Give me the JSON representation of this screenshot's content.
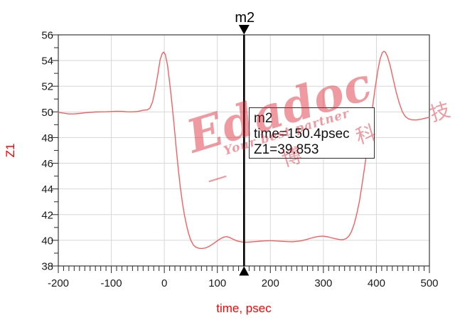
{
  "chart_data": {
    "type": "line",
    "title": "",
    "xlabel": "time, psec",
    "ylabel": "Z1",
    "xlim": [
      -200,
      500
    ],
    "ylim": [
      38,
      56
    ],
    "x_tick_step": 100,
    "x_minor_step": 10,
    "y_tick_step": 2,
    "y_minor_step": 1,
    "grid": true,
    "legend_position": "none",
    "colors": {
      "trace": "#f75f5f",
      "grid": "#d8d8d8",
      "frame": "#3a3a3a",
      "axis_title": "#fe0000",
      "marker": "#000000"
    },
    "series": [
      {
        "name": "Z1",
        "points": [
          [
            -200,
            49.97
          ],
          [
            -190,
            49.9
          ],
          [
            -180,
            49.84
          ],
          [
            -170,
            49.84
          ],
          [
            -160,
            49.88
          ],
          [
            -150,
            49.93
          ],
          [
            -140,
            49.96
          ],
          [
            -130,
            49.99
          ],
          [
            -120,
            50.0
          ],
          [
            -110,
            50.01
          ],
          [
            -100,
            50.03
          ],
          [
            -90,
            50.05
          ],
          [
            -80,
            50.04
          ],
          [
            -70,
            50.01
          ],
          [
            -60,
            50.0
          ],
          [
            -52,
            50.03
          ],
          [
            -45,
            50.08
          ],
          [
            -38,
            50.14
          ],
          [
            -32,
            50.16
          ],
          [
            -27,
            50.3
          ],
          [
            -22,
            50.8
          ],
          [
            -17,
            51.8
          ],
          [
            -12,
            53.0
          ],
          [
            -8,
            54.05
          ],
          [
            -4,
            54.55
          ],
          [
            -1,
            54.66
          ],
          [
            2,
            54.45
          ],
          [
            6,
            53.65
          ],
          [
            10,
            52.3
          ],
          [
            14,
            50.8
          ],
          [
            18,
            49.15
          ],
          [
            22,
            47.4
          ],
          [
            26,
            45.7
          ],
          [
            30,
            44.2
          ],
          [
            34,
            42.95
          ],
          [
            38,
            41.95
          ],
          [
            42,
            41.15
          ],
          [
            46,
            40.5
          ],
          [
            50,
            40.0
          ],
          [
            55,
            39.62
          ],
          [
            60,
            39.45
          ],
          [
            66,
            39.37
          ],
          [
            72,
            39.36
          ],
          [
            78,
            39.41
          ],
          [
            84,
            39.52
          ],
          [
            90,
            39.67
          ],
          [
            96,
            39.84
          ],
          [
            102,
            40.02
          ],
          [
            108,
            40.17
          ],
          [
            113,
            40.26
          ],
          [
            118,
            40.28
          ],
          [
            123,
            40.22
          ],
          [
            128,
            40.12
          ],
          [
            134,
            40.0
          ],
          [
            140,
            39.92
          ],
          [
            146,
            39.87
          ],
          [
            150.4,
            39.853
          ],
          [
            156,
            39.85
          ],
          [
            163,
            39.87
          ],
          [
            172,
            39.9
          ],
          [
            182,
            39.94
          ],
          [
            192,
            39.96
          ],
          [
            202,
            39.97
          ],
          [
            212,
            39.95
          ],
          [
            222,
            39.92
          ],
          [
            232,
            39.9
          ],
          [
            242,
            39.89
          ],
          [
            252,
            39.93
          ],
          [
            260,
            39.98
          ],
          [
            268,
            40.06
          ],
          [
            276,
            40.16
          ],
          [
            284,
            40.25
          ],
          [
            292,
            40.31
          ],
          [
            300,
            40.32
          ],
          [
            308,
            40.27
          ],
          [
            316,
            40.19
          ],
          [
            324,
            40.11
          ],
          [
            331,
            40.06
          ],
          [
            337,
            40.05
          ],
          [
            343,
            40.13
          ],
          [
            348,
            40.32
          ],
          [
            353,
            40.68
          ],
          [
            358,
            41.25
          ],
          [
            363,
            42.05
          ],
          [
            368,
            43.05
          ],
          [
            373,
            44.35
          ],
          [
            378,
            45.75
          ],
          [
            383,
            47.25
          ],
          [
            388,
            48.85
          ],
          [
            393,
            50.45
          ],
          [
            398,
            51.95
          ],
          [
            403,
            53.3
          ],
          [
            407,
            54.1
          ],
          [
            411,
            54.6
          ],
          [
            414,
            54.72
          ],
          [
            417,
            54.65
          ],
          [
            421,
            54.3
          ],
          [
            426,
            53.6
          ],
          [
            431,
            52.7
          ],
          [
            437,
            51.6
          ],
          [
            443,
            50.7
          ],
          [
            449,
            50.0
          ],
          [
            455,
            49.62
          ],
          [
            461,
            49.45
          ],
          [
            468,
            49.38
          ],
          [
            475,
            49.37
          ],
          [
            483,
            49.42
          ],
          [
            491,
            49.5
          ],
          [
            500,
            49.58
          ]
        ]
      }
    ],
    "marker": {
      "id": "m2",
      "time_psec": 150.4,
      "value": 39.853,
      "readout": [
        "m2",
        "time=150.4psec",
        "Z1=39.853"
      ]
    }
  },
  "watermark": {
    "brand": "Edadoc",
    "tagline": "Your best partner",
    "cjk": "一 博 科 技"
  }
}
